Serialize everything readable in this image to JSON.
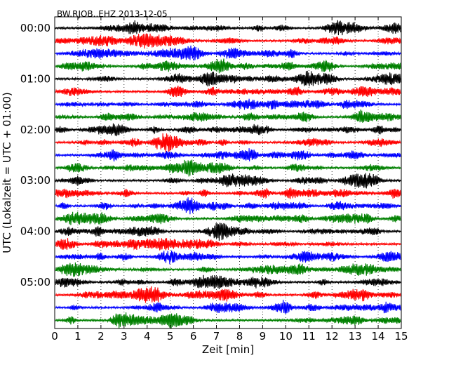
{
  "chart_data": {
    "type": "line",
    "title": "BW.RJOB..EHZ 2013-12-05",
    "xlabel": "Zeit  [min]",
    "ylabel": "UTC (Lokalzeit = UTC + 01:00)",
    "xlim": [
      0,
      15
    ],
    "x_ticks": [
      "0",
      "1",
      "2",
      "3",
      "4",
      "5",
      "6",
      "7",
      "8",
      "9",
      "10",
      "11",
      "12",
      "13",
      "14",
      "15"
    ],
    "y_ticks": [
      "00:00",
      "01:00",
      "02:00",
      "03:00",
      "04:00",
      "05:00"
    ],
    "trace_interval_min": 15,
    "trace_count": 24,
    "trace_colors": [
      "#000000",
      "#ff0000",
      "#0000ff",
      "#008000"
    ],
    "vertical_grid": "dotted at every minute"
  }
}
